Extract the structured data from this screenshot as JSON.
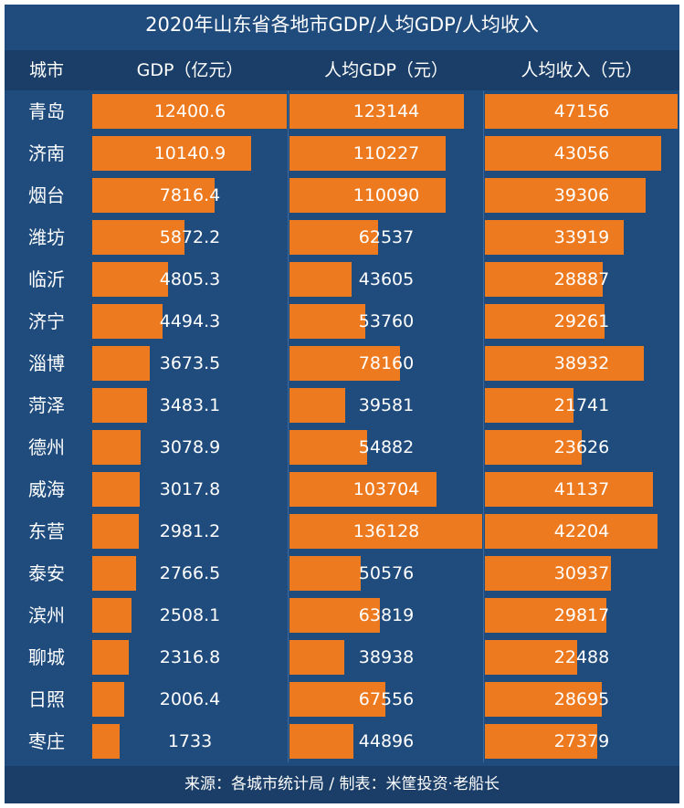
{
  "chart_data": {
    "type": "table",
    "title": "2020年山东省各地市GDP/人均GDP/人均收入",
    "columns": [
      "城市",
      "GDP（亿元）",
      "人均GDP（元）",
      "人均收入（元）"
    ],
    "categories": [
      "青岛",
      "济南",
      "烟台",
      "潍坊",
      "临沂",
      "济宁",
      "淄博",
      "菏泽",
      "德州",
      "威海",
      "东营",
      "泰安",
      "滨州",
      "聊城",
      "日照",
      "枣庄"
    ],
    "series": [
      {
        "name": "GDP（亿元）",
        "values": [
          "12400.6",
          "10140.9",
          "7816.4",
          "5872.2",
          "4805.3",
          "4494.3",
          "3673.5",
          "3483.1",
          "3078.9",
          "3017.8",
          "2981.2",
          "2766.5",
          "2508.1",
          "2316.8",
          "2006.4",
          "1733"
        ]
      },
      {
        "name": "人均GDP（元）",
        "values": [
          "123144",
          "110227",
          "110090",
          "62537",
          "43605",
          "53760",
          "78160",
          "39581",
          "54882",
          "103704",
          "136128",
          "50576",
          "63819",
          "38938",
          "67556",
          "44896"
        ]
      },
      {
        "name": "人均收入（元）",
        "values": [
          "47156",
          "43056",
          "39306",
          "33919",
          "28887",
          "29261",
          "38932",
          "21741",
          "23626",
          "41137",
          "42204",
          "30937",
          "29817",
          "22488",
          "28695",
          "27379"
        ]
      }
    ],
    "footer": "来源：各城市统计局 / 制表：米筐投资·老船长"
  },
  "colors": {
    "background": "#1f4b7d",
    "header": "#1a3e67",
    "bar": "#ee7a1f",
    "text": "#ffffff"
  }
}
